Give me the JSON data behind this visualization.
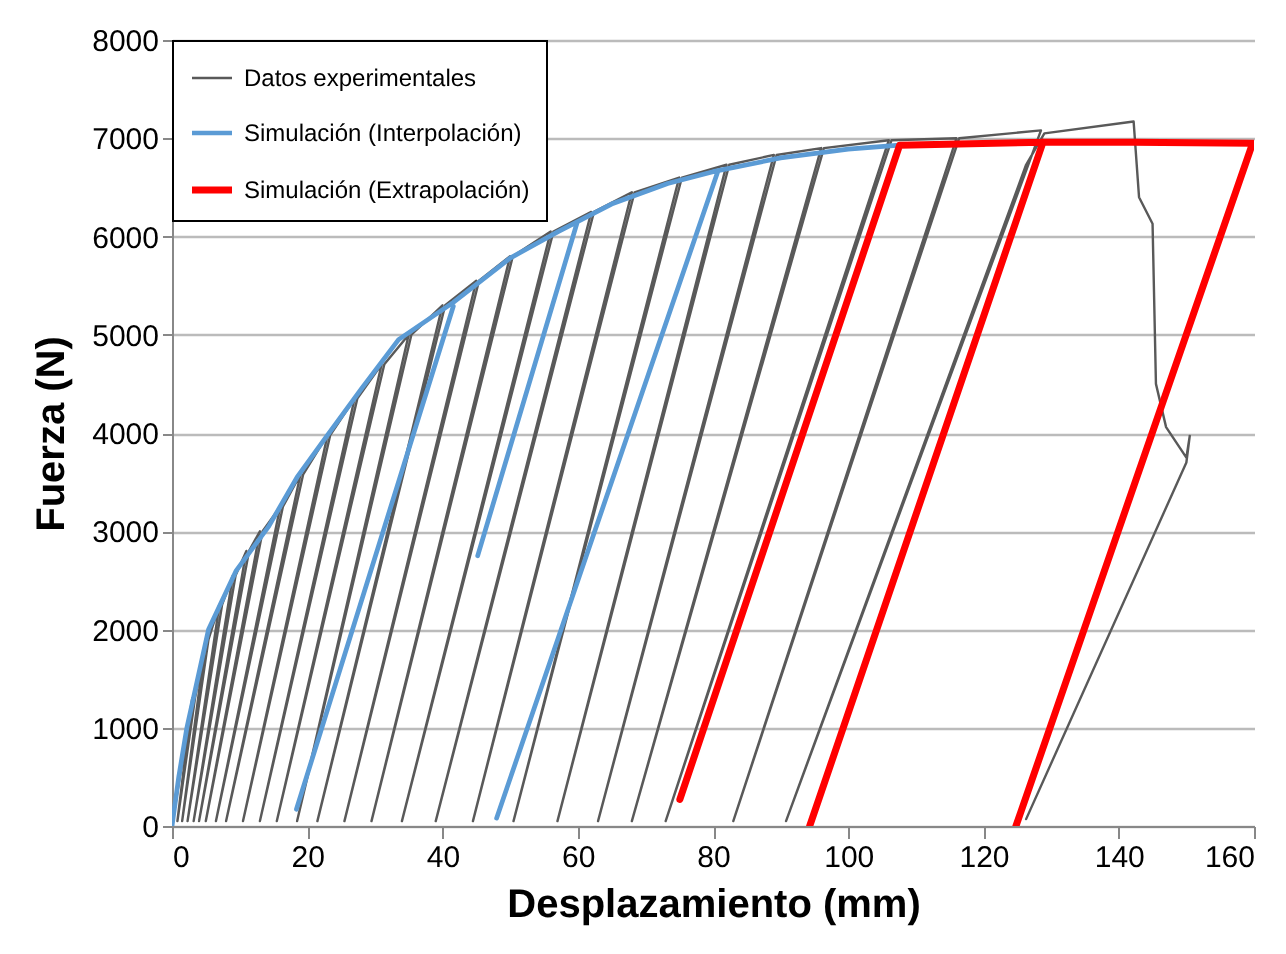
{
  "chart_data": {
    "type": "line",
    "xlabel": "Desplazamiento (mm)",
    "ylabel": "Fuerza (N)",
    "xlim": [
      0,
      160
    ],
    "xticks": [
      0,
      20,
      40,
      60,
      80,
      100,
      120,
      140,
      160
    ],
    "ylim": [
      0,
      8000
    ],
    "yticks": [
      0,
      1000,
      2000,
      3000,
      4000,
      5000,
      6000,
      7000,
      8000
    ],
    "grid": "y",
    "legend": "top left",
    "series": [
      {
        "name": "Datos experimentales",
        "color": "#595959",
        "x": [
          0,
          3,
          0.8,
          3.4,
          5,
          1.5,
          5.4,
          7,
          2.3,
          7.4,
          9,
          3.2,
          9.4,
          11,
          4.0,
          11.4,
          13,
          5.0,
          13.4,
          16,
          6.5,
          16.4,
          19,
          8.0,
          19.4,
          23,
          10.5,
          23.4,
          27,
          13,
          27.4,
          31,
          15.5,
          31.4,
          35,
          18.5,
          35.4,
          40,
          21.5,
          40.4,
          45,
          25.5,
          45.4,
          50,
          29.5,
          50.4,
          56,
          34,
          56.4,
          62,
          39,
          62.4,
          68,
          44.5,
          68.4,
          75,
          50.5,
          75.4,
          82,
          57,
          82.4,
          89,
          63,
          89.4,
          96,
          68,
          96.4,
          106,
          73,
          106.4,
          116,
          83,
          116.4,
          128.5,
          90.8,
          126.3,
          129,
          142.2,
          143,
          145,
          145.5,
          147,
          150,
          150.5,
          150,
          126.3
        ],
        "values": [
          0,
          1300,
          50,
          1300,
          1900,
          50,
          1900,
          2250,
          50,
          2250,
          2550,
          50,
          2550,
          2800,
          50,
          2800,
          3000,
          50,
          3000,
          3250,
          50,
          3250,
          3580,
          50,
          3580,
          3980,
          50,
          3980,
          4350,
          50,
          4350,
          4700,
          50,
          4700,
          5000,
          50,
          5000,
          5300,
          50,
          5300,
          5550,
          50,
          5550,
          5800,
          50,
          5800,
          6050,
          50,
          6050,
          6250,
          50,
          6250,
          6450,
          50,
          6450,
          6600,
          50,
          6600,
          6730,
          50,
          6730,
          6830,
          50,
          6830,
          6900,
          50,
          6900,
          6980,
          50,
          6980,
          7000,
          50,
          7000,
          7080,
          50,
          6730,
          7050,
          7170,
          6400,
          6130,
          4500,
          4060,
          3750,
          3970,
          3700,
          70
        ]
      },
      {
        "name": "Simulación (Interpolación)",
        "color": "#5b9bd5",
        "x": [
          0,
          1,
          2.2,
          5.4,
          9.5,
          14.3,
          18.5,
          22.7,
          28,
          33.5,
          41.6,
          50,
          57.1,
          65,
          73.3,
          80,
          90,
          100,
          107.6,
          null,
          41.6,
          18.4,
          null,
          59.9,
          45.2,
          null,
          80.7,
          48
        ],
        "values": [
          0,
          500,
          1000,
          2000,
          2600,
          3050,
          3550,
          3950,
          4450,
          4950,
          5330,
          5780,
          6050,
          6330,
          6540,
          6660,
          6800,
          6890,
          6930,
          null,
          5290,
          170,
          null,
          6140,
          2750,
          null,
          6660,
          80
        ]
      },
      {
        "name": "Simulación (Extrapolación)",
        "color": "#ff0000",
        "x": [
          75.1,
          107.6,
          128.8,
          142,
          159.8,
          124.8,
          null,
          128.8,
          94.3
        ],
        "values": [
          270,
          6930,
          6960,
          6960,
          6950,
          0,
          null,
          6960,
          0
        ]
      }
    ]
  }
}
